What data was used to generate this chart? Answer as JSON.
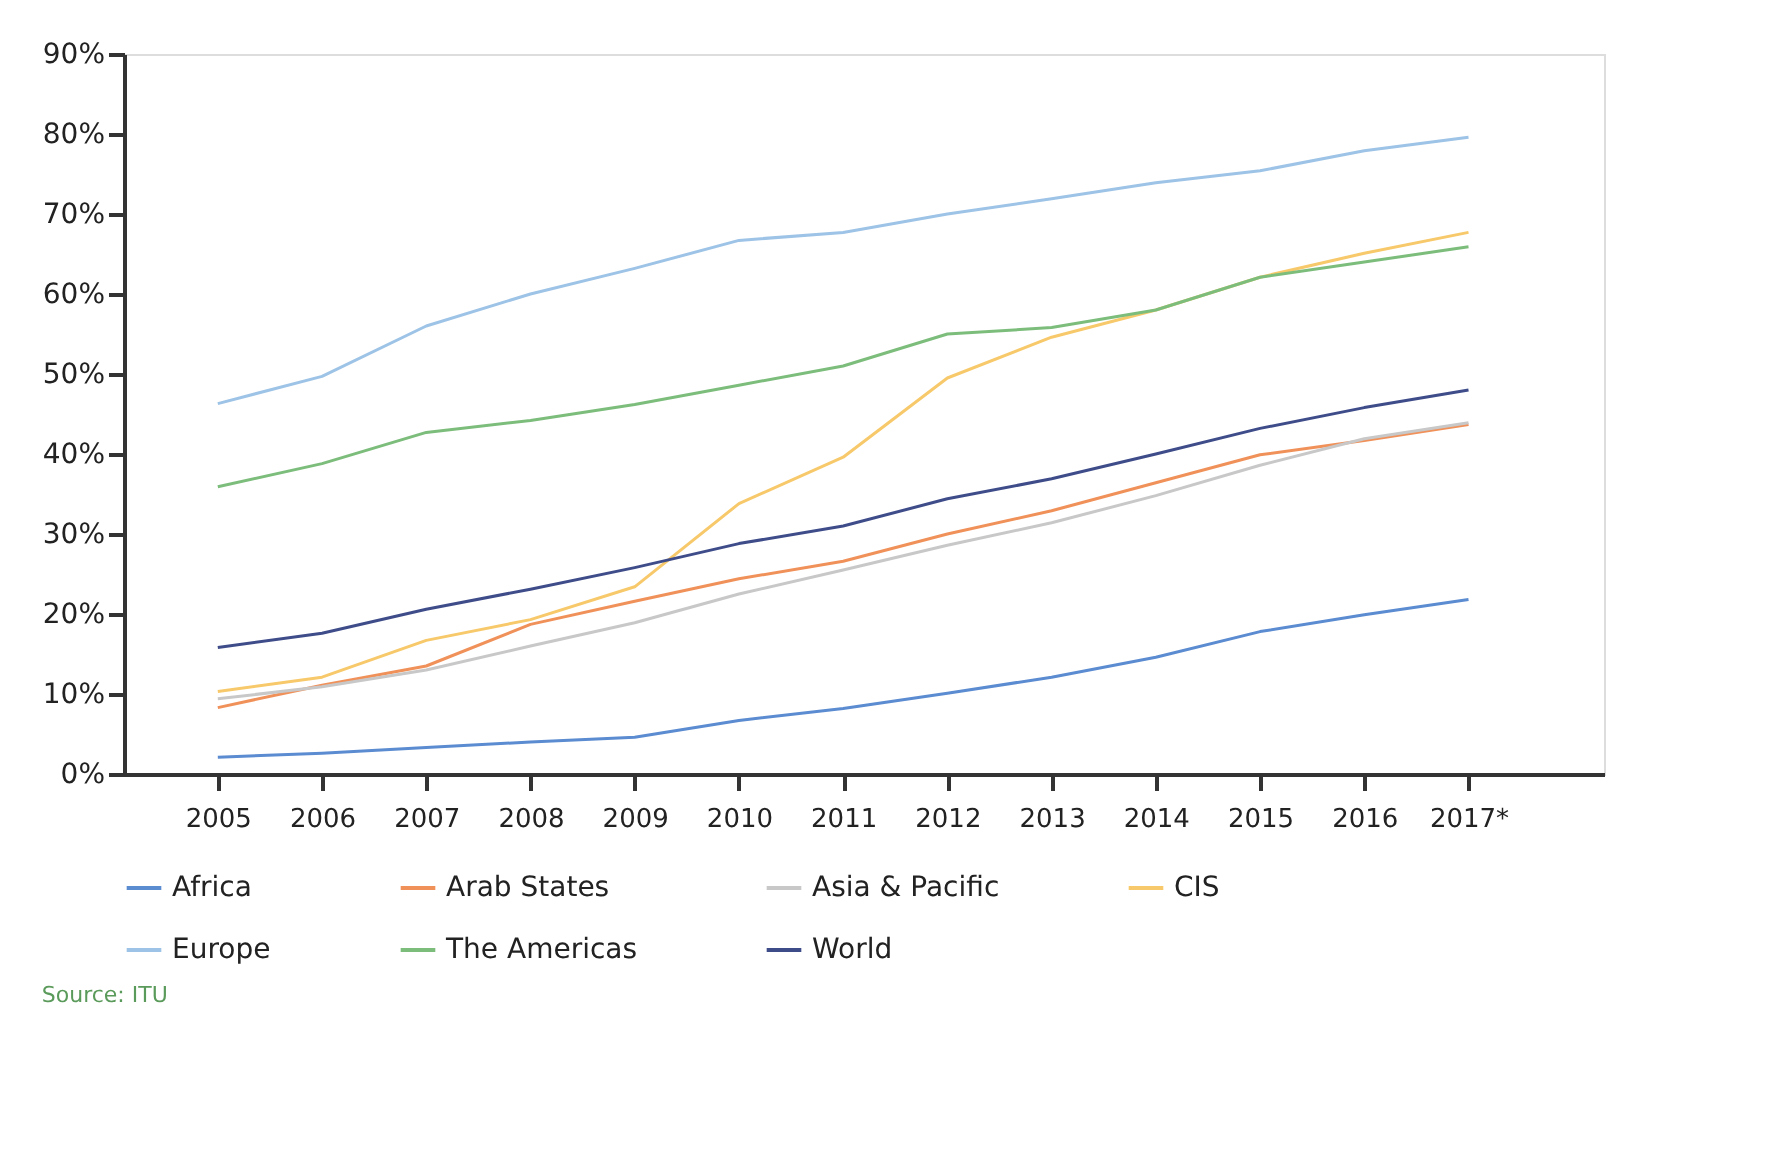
{
  "chart_data": {
    "type": "line",
    "categories": [
      "2005",
      "2006",
      "2007",
      "2008",
      "2009",
      "2010",
      "2011",
      "2012",
      "2013",
      "2014",
      "2015",
      "2016",
      "2017*"
    ],
    "ylim": [
      0,
      90
    ],
    "yticks": [
      {
        "value": 0,
        "label": "0%"
      },
      {
        "value": 10,
        "label": "10%"
      },
      {
        "value": 20,
        "label": "20%"
      },
      {
        "value": 30,
        "label": "30%"
      },
      {
        "value": 40,
        "label": "40%"
      },
      {
        "value": 50,
        "label": "50%"
      },
      {
        "value": 60,
        "label": "60%"
      },
      {
        "value": 70,
        "label": "70%"
      },
      {
        "value": 80,
        "label": "80%"
      },
      {
        "value": 90,
        "label": "90%"
      }
    ],
    "grid": false,
    "legend": "bottom",
    "marker": "none",
    "line_style": "solid",
    "annotations": [
      "Source: ITU"
    ],
    "series": [
      {
        "name": "Africa",
        "color": "#5b8bd0",
        "values": [
          2.1,
          2.6,
          3.3,
          4.0,
          4.6,
          6.7,
          8.2,
          10.1,
          12.1,
          14.6,
          17.8,
          19.9,
          21.8
        ]
      },
      {
        "name": "Arab States",
        "color": "#f0915a",
        "values": [
          8.3,
          11.1,
          13.5,
          18.7,
          21.6,
          24.4,
          26.6,
          30.0,
          32.9,
          36.4,
          39.9,
          41.7,
          43.7
        ]
      },
      {
        "name": "Asia & Pacific",
        "color": "#c8c8c8",
        "values": [
          9.4,
          10.9,
          13.0,
          16.0,
          18.9,
          22.5,
          25.5,
          28.6,
          31.4,
          34.8,
          38.6,
          41.9,
          43.9
        ]
      },
      {
        "name": "CIS",
        "color": "#f7c96a",
        "values": [
          10.3,
          12.1,
          16.7,
          19.3,
          23.4,
          33.8,
          39.6,
          49.5,
          54.6,
          58.0,
          62.1,
          65.1,
          67.7
        ]
      },
      {
        "name": "Europe",
        "color": "#9dc3e6",
        "values": [
          46.3,
          49.7,
          56.0,
          60.0,
          63.2,
          66.7,
          67.7,
          70.0,
          71.9,
          73.9,
          75.4,
          77.9,
          79.6
        ]
      },
      {
        "name": "The Americas",
        "color": "#7cbd7c",
        "values": [
          35.9,
          38.8,
          42.7,
          44.2,
          46.2,
          48.6,
          51.0,
          55.0,
          55.8,
          58.0,
          62.1,
          64.0,
          65.9
        ]
      },
      {
        "name": "World",
        "color": "#3e4c8a",
        "values": [
          15.8,
          17.6,
          20.6,
          23.1,
          25.8,
          28.8,
          31.0,
          34.4,
          36.9,
          40.0,
          43.2,
          45.8,
          48.0
        ]
      }
    ]
  }
}
